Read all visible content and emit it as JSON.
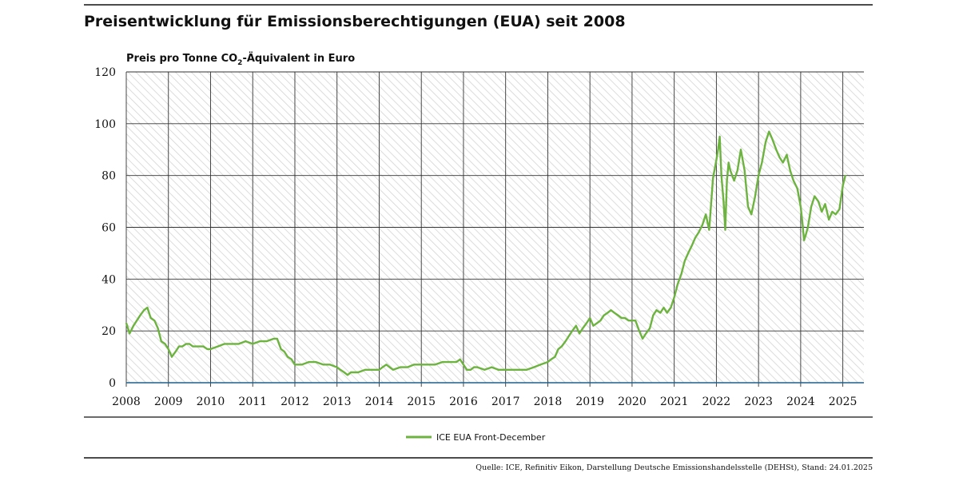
{
  "page": {
    "title": "Preisentwicklung für Emissionsberechtigungen (EUA) seit 2008",
    "source": "Quelle: ICE, Refinitiv Eikon, Darstellung Deutsche Emissionshandelsstelle (DEHSt), Stand: 24.01.2025"
  },
  "colors": {
    "series": "#6db33f",
    "grid": "#333333",
    "hatch": "#d9d9d9",
    "baseline": "#1f5f8b",
    "rule": "#111111"
  },
  "chart_data": {
    "type": "line",
    "title": "Preisentwicklung für Emissionsberechtigungen (EUA) seit 2008",
    "ylabel_main": "Preis pro Tonne CO",
    "ylabel_sub": "2",
    "ylabel_rest": "-Äquivalent in Euro",
    "xlabel": "",
    "ylim": [
      0,
      120
    ],
    "xlim": [
      2008,
      2025.5
    ],
    "y_ticks": [
      "0",
      "20",
      "40",
      "60",
      "80",
      "100",
      "120"
    ],
    "x_ticks": [
      "2008",
      "2009",
      "2010",
      "2011",
      "2012",
      "2013",
      "2014",
      "2015",
      "2016",
      "2017",
      "2018",
      "2019",
      "2020",
      "2021",
      "2022",
      "2023",
      "2024",
      "2025"
    ],
    "grid": true,
    "legend": "bottom-center",
    "series": [
      {
        "name": "ICE EUA Front-December",
        "x": [
          2008.0,
          2008.08,
          2008.17,
          2008.25,
          2008.33,
          2008.42,
          2008.5,
          2008.58,
          2008.67,
          2008.75,
          2008.83,
          2008.92,
          2009.0,
          2009.08,
          2009.17,
          2009.25,
          2009.33,
          2009.42,
          2009.5,
          2009.58,
          2009.67,
          2009.75,
          2009.83,
          2009.92,
          2010.0,
          2010.17,
          2010.33,
          2010.5,
          2010.67,
          2010.83,
          2011.0,
          2011.17,
          2011.33,
          2011.5,
          2011.58,
          2011.67,
          2011.75,
          2011.83,
          2011.92,
          2012.0,
          2012.17,
          2012.33,
          2012.5,
          2012.67,
          2012.83,
          2013.0,
          2013.08,
          2013.17,
          2013.25,
          2013.33,
          2013.5,
          2013.67,
          2013.83,
          2014.0,
          2014.08,
          2014.17,
          2014.25,
          2014.33,
          2014.5,
          2014.67,
          2014.83,
          2015.0,
          2015.17,
          2015.33,
          2015.5,
          2015.67,
          2015.83,
          2015.92,
          2016.0,
          2016.08,
          2016.17,
          2016.25,
          2016.33,
          2016.5,
          2016.67,
          2016.83,
          2017.0,
          2017.17,
          2017.33,
          2017.5,
          2017.67,
          2017.83,
          2018.0,
          2018.08,
          2018.17,
          2018.25,
          2018.33,
          2018.42,
          2018.5,
          2018.58,
          2018.67,
          2018.75,
          2018.83,
          2018.92,
          2019.0,
          2019.08,
          2019.17,
          2019.25,
          2019.33,
          2019.42,
          2019.5,
          2019.58,
          2019.67,
          2019.75,
          2019.83,
          2019.92,
          2020.0,
          2020.08,
          2020.17,
          2020.25,
          2020.33,
          2020.42,
          2020.5,
          2020.58,
          2020.67,
          2020.75,
          2020.83,
          2020.92,
          2021.0,
          2021.08,
          2021.17,
          2021.25,
          2021.33,
          2021.42,
          2021.5,
          2021.58,
          2021.67,
          2021.75,
          2021.83,
          2021.92,
          2022.0,
          2022.04,
          2022.08,
          2022.12,
          2022.17,
          2022.21,
          2022.25,
          2022.29,
          2022.33,
          2022.42,
          2022.5,
          2022.58,
          2022.67,
          2022.75,
          2022.83,
          2022.92,
          2023.0,
          2023.08,
          2023.17,
          2023.25,
          2023.33,
          2023.42,
          2023.5,
          2023.58,
          2023.67,
          2023.75,
          2023.83,
          2023.92,
          2024.0,
          2024.04,
          2024.08,
          2024.12,
          2024.17,
          2024.25,
          2024.33,
          2024.42,
          2024.5,
          2024.58,
          2024.67,
          2024.75,
          2024.83,
          2024.92,
          2025.0,
          2025.06
        ],
        "y": [
          23,
          19,
          22,
          24,
          26,
          28,
          29,
          25,
          24,
          21,
          16,
          15,
          13,
          10,
          12,
          14,
          14,
          15,
          15,
          14,
          14,
          14,
          14,
          13,
          13,
          14,
          15,
          15,
          15,
          16,
          15,
          16,
          16,
          17,
          17,
          13,
          12,
          10,
          9,
          7,
          7,
          8,
          8,
          7,
          7,
          6,
          5,
          4,
          3,
          4,
          4,
          5,
          5,
          5,
          6,
          7,
          6,
          5,
          6,
          6,
          7,
          7,
          7,
          7,
          8,
          8,
          8,
          9,
          7,
          5,
          5,
          6,
          6,
          5,
          6,
          5,
          5,
          5,
          5,
          5,
          6,
          7,
          8,
          9,
          10,
          13,
          14,
          16,
          18,
          20,
          22,
          19,
          21,
          23,
          25,
          22,
          23,
          24,
          26,
          27,
          28,
          27,
          26,
          25,
          25,
          24,
          24,
          24,
          20,
          17,
          19,
          21,
          26,
          28,
          27,
          29,
          27,
          29,
          33,
          38,
          42,
          47,
          50,
          53,
          56,
          58,
          61,
          65,
          59,
          79,
          86,
          90,
          95,
          80,
          70,
          59,
          78,
          85,
          82,
          78,
          82,
          90,
          82,
          68,
          65,
          72,
          80,
          85,
          93,
          97,
          94,
          90,
          87,
          85,
          88,
          82,
          78,
          75,
          68,
          62,
          55,
          57,
          60,
          68,
          72,
          70,
          66,
          69,
          63,
          66,
          65,
          67,
          76,
          80
        ]
      }
    ]
  }
}
